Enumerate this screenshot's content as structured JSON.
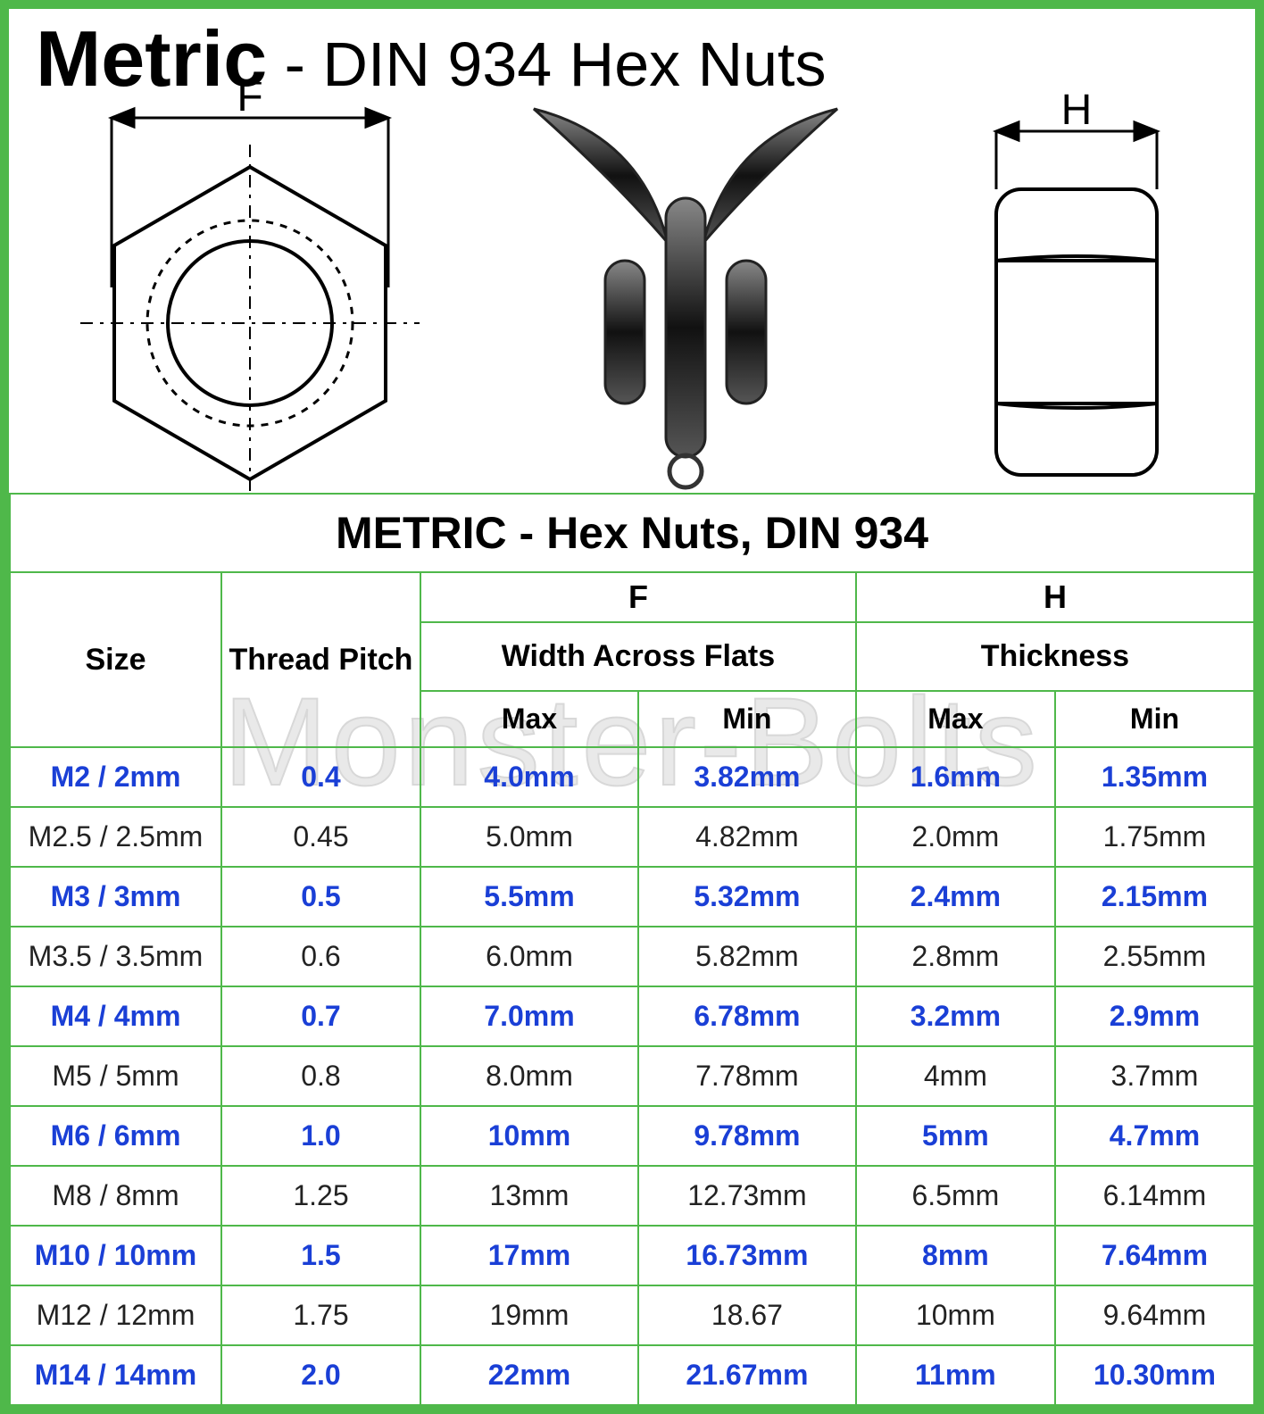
{
  "title_bold": "Metric",
  "title_sep": " - ",
  "title_rest": "DIN 934 Hex Nuts",
  "dim_F_label": "F",
  "dim_H_label": "H",
  "watermark": "Monster-Bolts",
  "table_title": "METRIC - Hex Nuts, DIN 934",
  "headers": {
    "size": "Size",
    "pitch": "Thread Pitch",
    "F_letter": "F",
    "H_letter": "H",
    "F_label": "Width Across Flats",
    "H_label": "Thickness",
    "max": "Max",
    "min": "Min"
  },
  "colors": {
    "border": "#4fb84a",
    "blue": "#1a3fd6",
    "black": "#222222",
    "watermark": "#e9e9e9"
  },
  "rows": [
    {
      "style": "blue",
      "size": "M2 / 2mm",
      "pitch": "0.4",
      "fmax": "4.0mm",
      "fmin": "3.82mm",
      "hmax": "1.6mm",
      "hmin": "1.35mm"
    },
    {
      "style": "black",
      "size": "M2.5 / 2.5mm",
      "pitch": "0.45",
      "fmax": "5.0mm",
      "fmin": "4.82mm",
      "hmax": "2.0mm",
      "hmin": "1.75mm"
    },
    {
      "style": "blue",
      "size": "M3 / 3mm",
      "pitch": "0.5",
      "fmax": "5.5mm",
      "fmin": "5.32mm",
      "hmax": "2.4mm",
      "hmin": "2.15mm"
    },
    {
      "style": "black",
      "size": "M3.5 / 3.5mm",
      "pitch": "0.6",
      "fmax": "6.0mm",
      "fmin": "5.82mm",
      "hmax": "2.8mm",
      "hmin": "2.55mm"
    },
    {
      "style": "blue",
      "size": "M4 / 4mm",
      "pitch": "0.7",
      "fmax": "7.0mm",
      "fmin": "6.78mm",
      "hmax": "3.2mm",
      "hmin": "2.9mm"
    },
    {
      "style": "black",
      "size": "M5 / 5mm",
      "pitch": "0.8",
      "fmax": "8.0mm",
      "fmin": "7.78mm",
      "hmax": "4mm",
      "hmin": "3.7mm"
    },
    {
      "style": "blue",
      "size": "M6 / 6mm",
      "pitch": "1.0",
      "fmax": "10mm",
      "fmin": "9.78mm",
      "hmax": "5mm",
      "hmin": "4.7mm"
    },
    {
      "style": "black",
      "size": "M8 / 8mm",
      "pitch": "1.25",
      "fmax": "13mm",
      "fmin": "12.73mm",
      "hmax": "6.5mm",
      "hmin": "6.14mm"
    },
    {
      "style": "blue",
      "size": "M10 / 10mm",
      "pitch": "1.5",
      "fmax": "17mm",
      "fmin": "16.73mm",
      "hmax": "8mm",
      "hmin": "7.64mm"
    },
    {
      "style": "black",
      "size": "M12 / 12mm",
      "pitch": "1.75",
      "fmax": "19mm",
      "fmin": "18.67",
      "hmax": "10mm",
      "hmin": "9.64mm"
    },
    {
      "style": "blue",
      "size": "M14 / 14mm",
      "pitch": "2.0",
      "fmax": "22mm",
      "fmin": "21.67mm",
      "hmax": "11mm",
      "hmin": "10.30mm"
    }
  ]
}
